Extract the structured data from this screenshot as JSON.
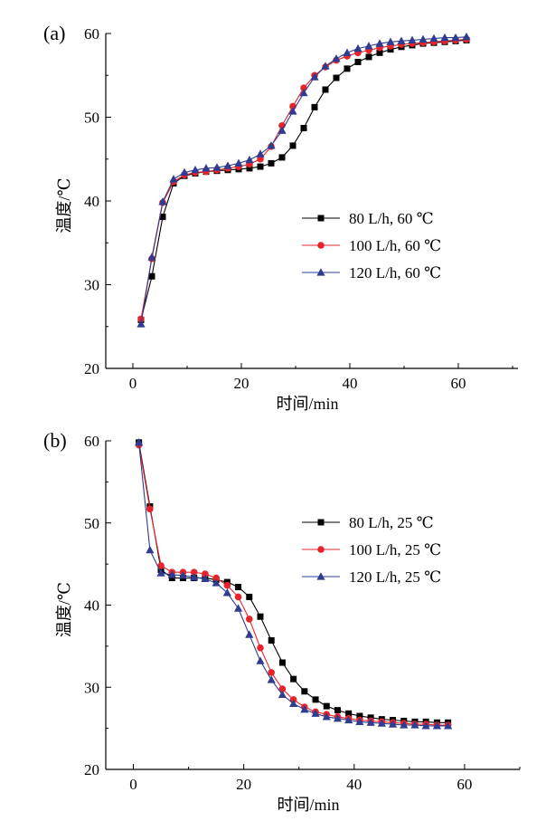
{
  "chart_data": [
    {
      "panel_label": "(a)",
      "type": "line",
      "xlabel": "时间/min",
      "ylabel": "温度/℃",
      "xlim": [
        -5,
        71
      ],
      "ylim": [
        20,
        60
      ],
      "xticks": [
        "0",
        "20",
        "40",
        "60"
      ],
      "yticks": [
        "20",
        "30",
        "40",
        "50",
        "60"
      ],
      "legend_position": "center-right",
      "series": [
        {
          "name": "80 L/h, 60 ℃",
          "color": "#000000",
          "marker": "square",
          "x": [
            1.5,
            3.5,
            5.5,
            7.5,
            9.5,
            11.5,
            13.5,
            15.5,
            17.5,
            19.5,
            21.5,
            23.5,
            25.5,
            27.5,
            29.5,
            31.5,
            33.5,
            35.5,
            37.5,
            39.5,
            41.5,
            43.5,
            45.5,
            47.5,
            49.5,
            51.5,
            53.5,
            55.5,
            57.5,
            59.5,
            61.5
          ],
          "y": [
            25.8,
            31.0,
            38.1,
            42.1,
            43.0,
            43.3,
            43.5,
            43.6,
            43.7,
            43.8,
            43.9,
            44.1,
            44.5,
            45.2,
            46.6,
            48.7,
            51.2,
            53.3,
            54.7,
            55.8,
            56.6,
            57.2,
            57.7,
            58.1,
            58.4,
            58.6,
            58.8,
            58.9,
            59.0,
            59.1,
            59.2
          ]
        },
        {
          "name": "100 L/h, 60 ℃",
          "color": "#e8232a",
          "marker": "circle",
          "x": [
            1.5,
            3.5,
            5.5,
            7.5,
            9.5,
            11.5,
            13.5,
            15.5,
            17.5,
            19.5,
            21.5,
            23.5,
            25.5,
            27.5,
            29.5,
            31.5,
            33.5,
            35.5,
            37.5,
            39.5,
            41.5,
            43.5,
            45.5,
            47.5,
            49.5,
            51.5,
            53.5,
            55.5,
            57.5,
            59.5,
            61.5
          ],
          "y": [
            25.9,
            33.1,
            39.8,
            42.3,
            43.1,
            43.4,
            43.5,
            43.7,
            43.9,
            44.1,
            44.4,
            45.0,
            46.5,
            49.0,
            51.3,
            53.5,
            55.0,
            56.0,
            56.8,
            57.3,
            57.7,
            58.0,
            58.3,
            58.5,
            58.7,
            58.8,
            58.9,
            59.0,
            59.1,
            59.2,
            59.3
          ]
        },
        {
          "name": "120 L/h, 60 ℃",
          "color": "#2f3c8f",
          "marker": "triangle",
          "x": [
            1.5,
            3.5,
            5.5,
            7.5,
            9.5,
            11.5,
            13.5,
            15.5,
            17.5,
            19.5,
            21.5,
            23.5,
            25.5,
            27.5,
            29.5,
            31.5,
            33.5,
            35.5,
            37.5,
            39.5,
            41.5,
            43.5,
            45.5,
            47.5,
            49.5,
            51.5,
            53.5,
            55.5,
            57.5,
            59.5,
            61.5
          ],
          "y": [
            25.3,
            33.3,
            39.9,
            42.6,
            43.4,
            43.7,
            43.9,
            44.0,
            44.2,
            44.5,
            44.9,
            45.6,
            46.6,
            48.4,
            50.7,
            52.9,
            54.8,
            56.1,
            57.0,
            57.7,
            58.2,
            58.5,
            58.8,
            59.0,
            59.1,
            59.2,
            59.3,
            59.4,
            59.5,
            59.5,
            59.6
          ]
        }
      ]
    },
    {
      "panel_label": "(b)",
      "type": "line",
      "xlabel": "时间/min",
      "ylabel": "温度/℃",
      "xlim": [
        -5,
        70
      ],
      "ylim": [
        20,
        60
      ],
      "xticks": [
        "0",
        "20",
        "40",
        "60"
      ],
      "yticks": [
        "20",
        "30",
        "40",
        "50",
        "60"
      ],
      "legend_position": "top-right",
      "series": [
        {
          "name": "80 L/h, 25 ℃",
          "color": "#000000",
          "marker": "square",
          "x": [
            1,
            3,
            5,
            7,
            9,
            11,
            13,
            15,
            17,
            19,
            21,
            23,
            25,
            27,
            29,
            31,
            33,
            35,
            37,
            39,
            41,
            43,
            45,
            47,
            49,
            51,
            53,
            55,
            57
          ],
          "y": [
            59.8,
            52.0,
            44.3,
            43.3,
            43.3,
            43.3,
            43.3,
            43.1,
            42.8,
            42.2,
            41.0,
            38.6,
            35.7,
            33.0,
            31.0,
            29.5,
            28.5,
            27.7,
            27.2,
            26.8,
            26.5,
            26.3,
            26.1,
            26.0,
            25.9,
            25.8,
            25.8,
            25.7,
            25.7
          ]
        },
        {
          "name": "100 L/h, 25 ℃",
          "color": "#e8232a",
          "marker": "circle",
          "x": [
            1,
            3,
            5,
            7,
            9,
            11,
            13,
            15,
            17,
            19,
            21,
            23,
            25,
            27,
            29,
            31,
            33,
            35,
            37,
            39,
            41,
            43,
            45,
            47,
            49,
            51,
            53,
            55,
            57
          ],
          "y": [
            59.5,
            51.7,
            44.8,
            44.0,
            44.0,
            44.0,
            43.8,
            43.3,
            42.4,
            41.0,
            38.3,
            34.8,
            31.8,
            29.8,
            28.5,
            27.6,
            27.0,
            26.7,
            26.4,
            26.2,
            26.0,
            25.9,
            25.8,
            25.7,
            25.6,
            25.5,
            25.5,
            25.4,
            25.4
          ]
        },
        {
          "name": "120 L/h, 25 ℃",
          "color": "#2f3c8f",
          "marker": "triangle",
          "x": [
            1,
            3,
            5,
            7,
            9,
            11,
            13,
            15,
            17,
            19,
            21,
            23,
            25,
            27,
            29,
            31,
            33,
            35,
            37,
            39,
            41,
            43,
            45,
            47,
            49,
            51,
            53,
            55,
            57
          ],
          "y": [
            59.8,
            46.7,
            43.9,
            43.7,
            43.6,
            43.4,
            43.2,
            42.7,
            41.5,
            39.6,
            36.4,
            33.2,
            30.9,
            29.1,
            28.0,
            27.3,
            26.8,
            26.4,
            26.2,
            26.0,
            25.8,
            25.7,
            25.6,
            25.5,
            25.4,
            25.4,
            25.3,
            25.3,
            25.3
          ]
        }
      ]
    }
  ]
}
